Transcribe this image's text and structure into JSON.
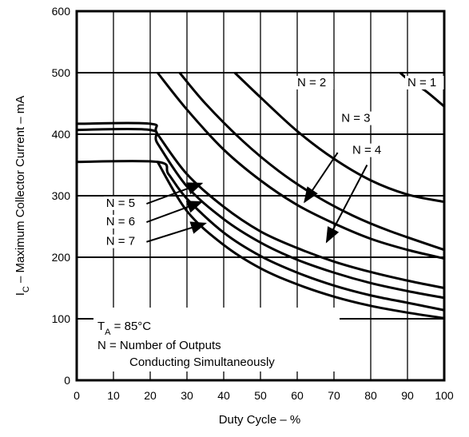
{
  "chart_data": {
    "type": "line",
    "xlabel": "Duty Cycle – %",
    "ylabel_main": "I",
    "ylabel_sub": "C",
    "ylabel_rest": " – Maximum Collector Current – mA",
    "xlim": [
      0,
      100
    ],
    "ylim": [
      0,
      600
    ],
    "x_ticks": [
      0,
      10,
      20,
      30,
      40,
      50,
      60,
      70,
      80,
      90,
      100
    ],
    "y_ticks": [
      0,
      100,
      200,
      300,
      400,
      500,
      600
    ],
    "grid": true,
    "series": [
      {
        "name": "N = 1",
        "points": [
          [
            88,
            500
          ],
          [
            90,
            490
          ],
          [
            95,
            470
          ],
          [
            100,
            445
          ]
        ]
      },
      {
        "name": "N = 2",
        "points": [
          [
            43,
            500
          ],
          [
            50,
            460
          ],
          [
            60,
            405
          ],
          [
            70,
            360
          ],
          [
            80,
            325
          ],
          [
            90,
            302
          ],
          [
            100,
            290
          ]
        ]
      },
      {
        "name": "N = 3",
        "points": [
          [
            28,
            500
          ],
          [
            35,
            450
          ],
          [
            45,
            390
          ],
          [
            55,
            340
          ],
          [
            65,
            300
          ],
          [
            75,
            268
          ],
          [
            85,
            243
          ],
          [
            100,
            212
          ]
        ]
      },
      {
        "name": "N = 4",
        "points": [
          [
            22,
            500
          ],
          [
            30,
            440
          ],
          [
            40,
            375
          ],
          [
            50,
            325
          ],
          [
            60,
            285
          ],
          [
            70,
            255
          ],
          [
            80,
            230
          ],
          [
            90,
            212
          ],
          [
            100,
            198
          ]
        ]
      },
      {
        "name": "N = 5",
        "points": [
          [
            0,
            417
          ],
          [
            20,
            417
          ],
          [
            22,
            400
          ],
          [
            30,
            335
          ],
          [
            40,
            282
          ],
          [
            50,
            242
          ],
          [
            60,
            215
          ],
          [
            70,
            193
          ],
          [
            80,
            176
          ],
          [
            90,
            162
          ],
          [
            100,
            150
          ]
        ]
      },
      {
        "name": "N = 6",
        "points": [
          [
            0,
            407
          ],
          [
            20,
            407
          ],
          [
            22,
            385
          ],
          [
            30,
            315
          ],
          [
            40,
            262
          ],
          [
            50,
            224
          ],
          [
            60,
            196
          ],
          [
            70,
            175
          ],
          [
            80,
            158
          ],
          [
            90,
            145
          ],
          [
            100,
            134
          ]
        ]
      },
      {
        "name": "N = 7",
        "points": [
          [
            0,
            355
          ],
          [
            22,
            355
          ],
          [
            25,
            335
          ],
          [
            30,
            295
          ],
          [
            40,
            240
          ],
          [
            50,
            202
          ],
          [
            60,
            175
          ],
          [
            70,
            154
          ],
          [
            80,
            138
          ],
          [
            90,
            126
          ],
          [
            100,
            114
          ]
        ]
      },
      {
        "name": "",
        "points": [
          [
            22,
            355
          ],
          [
            30,
            275
          ],
          [
            40,
            220
          ],
          [
            50,
            182
          ],
          [
            60,
            156
          ],
          [
            70,
            136
          ],
          [
            80,
            121
          ],
          [
            90,
            110
          ],
          [
            100,
            101
          ]
        ]
      }
    ],
    "labels": [
      {
        "text": "N = 1",
        "x": 90,
        "y": 478
      },
      {
        "text": "N = 2",
        "x": 60,
        "y": 478
      },
      {
        "text": "N = 3",
        "x": 72,
        "y": 420
      },
      {
        "text": "N = 4",
        "x": 75,
        "y": 368
      },
      {
        "text": "N = 5",
        "x": 8,
        "y": 282
      },
      {
        "text": "N = 6",
        "x": 8,
        "y": 252
      },
      {
        "text": "N = 7",
        "x": 8,
        "y": 220
      }
    ],
    "arrows": [
      {
        "from": [
          71,
          370
        ],
        "to": [
          62,
          290
        ]
      },
      {
        "from": [
          79,
          350
        ],
        "to": [
          68,
          225
        ]
      },
      {
        "from": [
          19,
          287
        ],
        "to": [
          34,
          320
        ]
      },
      {
        "from": [
          19,
          257
        ],
        "to": [
          34,
          290
        ]
      },
      {
        "from": [
          19,
          225
        ],
        "to": [
          35,
          255
        ]
      }
    ],
    "annotations": {
      "ta_main": "T",
      "ta_sub": "A",
      "ta_rest": " = 85°C",
      "line2": "N = Number of Outputs",
      "line3": "Conducting Simultaneously"
    }
  }
}
